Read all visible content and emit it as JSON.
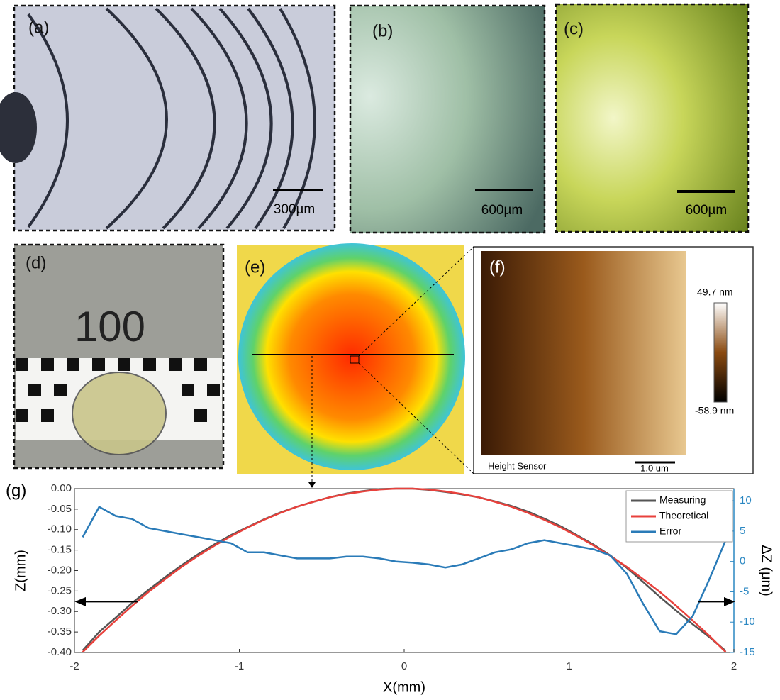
{
  "panels": [
    {
      "label": "(a)",
      "scale": "300µm"
    },
    {
      "label": "(b)",
      "scale": "600µm"
    },
    {
      "label": "(c)",
      "scale": "600µm"
    },
    {
      "label": "(d)",
      "ruler": "100"
    },
    {
      "label": "(e)"
    },
    {
      "label": "(f)",
      "colorbar_max": "49.7 nm",
      "colorbar_min": "-58.9 nm",
      "caption": "Height Sensor",
      "scale": "1.0 um"
    }
  ],
  "chart_data": {
    "type": "line",
    "label": "(g)",
    "x_label": "X(mm)",
    "y_label": "Z(mm)",
    "y2_label": "ΔZ (μm)",
    "xlim": [
      -2,
      2
    ],
    "xticks": [
      -2,
      -1,
      0,
      1,
      2
    ],
    "ylim": [
      -0.4,
      0
    ],
    "yticks": [
      {
        "value": 0,
        "label": "0.00"
      },
      -0.05,
      {
        "value": -0.1,
        "label": "-0.10"
      },
      -0.15,
      {
        "value": -0.2,
        "label": "-0.20"
      },
      -0.25,
      {
        "value": -0.3,
        "label": "-0.30"
      },
      -0.35,
      {
        "value": -0.4,
        "label": "-0.40"
      }
    ],
    "y2lim": [
      -15,
      12
    ],
    "y2ticks": [
      10,
      5,
      0,
      -5,
      -10,
      -15
    ],
    "x": [
      -1.95,
      -1.85,
      -1.75,
      -1.65,
      -1.55,
      -1.45,
      -1.35,
      -1.25,
      -1.15,
      -1.05,
      -0.95,
      -0.85,
      -0.75,
      -0.65,
      -0.55,
      -0.45,
      -0.35,
      -0.25,
      -0.15,
      -0.05,
      0.05,
      0.15,
      0.25,
      0.35,
      0.45,
      0.55,
      0.65,
      0.75,
      0.85,
      0.95,
      1.05,
      1.15,
      1.25,
      1.35,
      1.45,
      1.55,
      1.65,
      1.75,
      1.85,
      1.95
    ],
    "series": [
      {
        "name": "Measuring",
        "color": "#555555",
        "values": [
          -0.395,
          -0.35,
          -0.315,
          -0.279,
          -0.247,
          -0.216,
          -0.187,
          -0.16,
          -0.136,
          -0.113,
          -0.094,
          -0.075,
          -0.058,
          -0.044,
          -0.032,
          -0.021,
          -0.012,
          -0.006,
          -0.001,
          0,
          0,
          -0.003,
          -0.008,
          -0.014,
          -0.021,
          -0.031,
          -0.042,
          -0.056,
          -0.073,
          -0.092,
          -0.114,
          -0.137,
          -0.163,
          -0.193,
          -0.228,
          -0.264,
          -0.298,
          -0.331,
          -0.362,
          -0.396
        ]
      },
      {
        "name": "Theoretical",
        "color": "#e8413c",
        "values": [
          -0.399,
          -0.359,
          -0.322,
          -0.286,
          -0.252,
          -0.221,
          -0.191,
          -0.164,
          -0.139,
          -0.116,
          -0.095,
          -0.076,
          -0.059,
          -0.044,
          -0.032,
          -0.021,
          -0.013,
          -0.007,
          -0.002,
          0,
          0,
          -0.002,
          -0.007,
          -0.013,
          -0.021,
          -0.032,
          -0.044,
          -0.059,
          -0.076,
          -0.095,
          -0.116,
          -0.139,
          -0.164,
          -0.191,
          -0.221,
          -0.252,
          -0.286,
          -0.322,
          -0.359,
          -0.399
        ]
      },
      {
        "name": "Error",
        "color": "#2a7bb8",
        "axis": "y2",
        "values": [
          4,
          9,
          7.5,
          7,
          5.5,
          5,
          4.5,
          4,
          3.5,
          3,
          1.5,
          1.5,
          1,
          0.5,
          0.5,
          0.5,
          0.8,
          0.8,
          0.5,
          0,
          -0.2,
          -0.5,
          -1,
          -0.5,
          0.5,
          1.5,
          2,
          3,
          3.5,
          3,
          2.5,
          2,
          1,
          -2,
          -7,
          -11.5,
          -12,
          -9,
          -3,
          3.5
        ]
      }
    ]
  }
}
